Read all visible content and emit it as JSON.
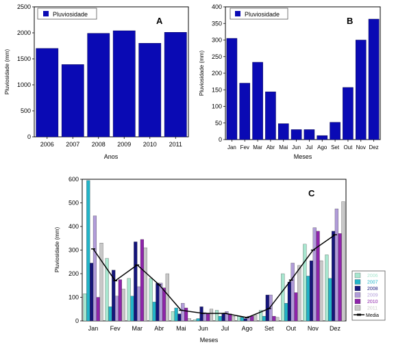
{
  "colors": {
    "bar_blue": "#0a0ab4",
    "series": [
      "#a8e6cf",
      "#22b4c8",
      "#15157a",
      "#b19cd9",
      "#8e24aa",
      "#c8c8c8"
    ],
    "mean_line": "#000000"
  },
  "chart_data": [
    {
      "type": "bar",
      "panel_label": "A",
      "categories": [
        "2006",
        "2007",
        "2008",
        "2009",
        "2010",
        "2011"
      ],
      "series": [
        {
          "name": "Pluviosidade",
          "values": [
            1700,
            1390,
            1990,
            2040,
            1800,
            2010
          ]
        }
      ],
      "xlabel": "Anos",
      "ylabel": "Pluviosidade (mm)",
      "ylim": [
        0,
        2500
      ],
      "yticks": [
        0,
        500,
        1000,
        1500,
        2000,
        2500
      ],
      "legend": "top-left"
    },
    {
      "type": "bar",
      "panel_label": "B",
      "categories": [
        "Jan",
        "Fev",
        "Mar",
        "Abr",
        "Mai",
        "Jun",
        "Jul",
        "Ago",
        "Set",
        "Out",
        "Nov",
        "Dez"
      ],
      "series": [
        {
          "name": "Pluviosidade",
          "values": [
            305,
            170,
            233,
            144,
            48,
            30,
            30,
            12,
            52,
            157,
            300,
            363
          ]
        }
      ],
      "xlabel": "Meses",
      "ylabel": "Pluviosidade (mm)",
      "ylim": [
        0,
        400
      ],
      "yticks": [
        0,
        50,
        100,
        150,
        200,
        250,
        300,
        350,
        400
      ],
      "legend": "top-left"
    },
    {
      "type": "bar",
      "panel_label": "C",
      "categories": [
        "Jan",
        "Fev",
        "Mar",
        "Abr",
        "Mai",
        "Jun",
        "Jul",
        "Ago",
        "Set",
        "Out",
        "Nov",
        "Dez"
      ],
      "series": [
        {
          "name": "2006",
          "values": [
            115,
            265,
            180,
            180,
            40,
            5,
            45,
            20,
            45,
            200,
            325,
            280
          ]
        },
        {
          "name": "2007",
          "values": [
            595,
            60,
            105,
            80,
            55,
            10,
            20,
            15,
            20,
            75,
            190,
            180
          ]
        },
        {
          "name": "2008",
          "values": [
            245,
            215,
            335,
            160,
            30,
            60,
            30,
            10,
            110,
            165,
            255,
            380
          ]
        },
        {
          "name": "2009",
          "values": [
            445,
            105,
            145,
            160,
            75,
            35,
            40,
            20,
            110,
            245,
            395,
            475
          ]
        },
        {
          "name": "2010",
          "values": [
            100,
            175,
            345,
            140,
            55,
            30,
            30,
            20,
            20,
            120,
            380,
            370
          ]
        },
        {
          "name": "2011",
          "values": [
            330,
            135,
            310,
            200,
            10,
            50,
            20,
            25,
            15,
            235,
            255,
            505
          ]
        }
      ],
      "mean": {
        "name": "Media",
        "values": [
          305,
          170,
          237,
          153,
          45,
          32,
          32,
          14,
          52,
          173,
          300,
          365
        ]
      },
      "xlabel": "Meses",
      "ylabel": "Pluviosidade (mm)",
      "ylim": [
        0,
        600
      ],
      "yticks": [
        0,
        100,
        200,
        300,
        400,
        500,
        600
      ],
      "legend": "bottom-right"
    }
  ]
}
